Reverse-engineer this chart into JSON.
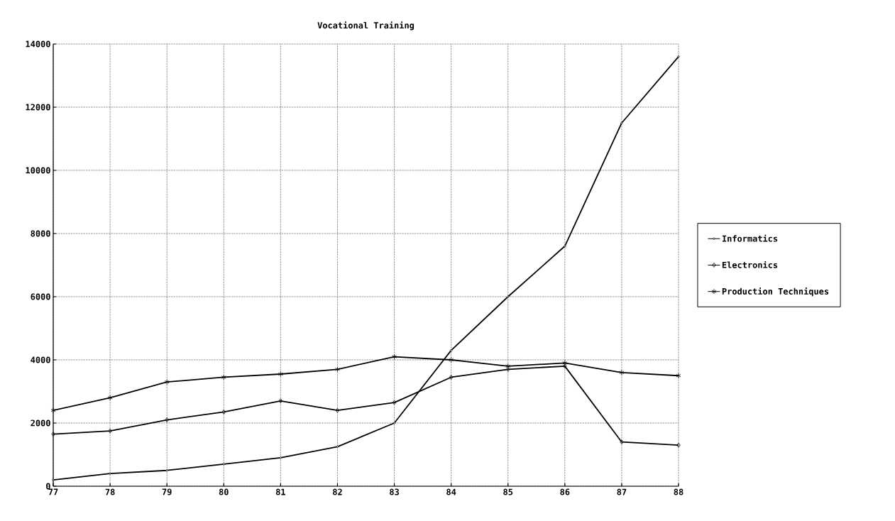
{
  "chart_data": {
    "type": "line",
    "title": "Vocational Training",
    "x": [
      77,
      78,
      79,
      80,
      81,
      82,
      83,
      84,
      85,
      86,
      87,
      88
    ],
    "xlim": [
      77,
      88
    ],
    "xticks": [
      77,
      78,
      79,
      80,
      81,
      82,
      83,
      84,
      85,
      86,
      87,
      88
    ],
    "ylim": [
      0,
      14000
    ],
    "yticks": [
      0,
      2000,
      4000,
      6000,
      8000,
      10000,
      12000,
      14000
    ],
    "grid": true,
    "legend": "right",
    "line_style": "solid",
    "series": [
      {
        "name": "Informatics",
        "color": "#000000",
        "marker": "circle",
        "values": [
          200,
          400,
          500,
          700,
          900,
          1250,
          2000,
          4300,
          6000,
          7600,
          11500,
          13600
        ]
      },
      {
        "name": "Electronics",
        "color": "#000000",
        "marker": "diamond",
        "values": [
          1650,
          1750,
          2100,
          2350,
          2700,
          2400,
          2650,
          3450,
          3700,
          3800,
          1400,
          1300
        ]
      },
      {
        "name": "Production Techniques",
        "color": "#000000",
        "marker": "cross",
        "values": [
          2400,
          2800,
          3300,
          3450,
          3550,
          3700,
          4100,
          4000,
          3800,
          3900,
          3600,
          3500
        ]
      }
    ]
  }
}
